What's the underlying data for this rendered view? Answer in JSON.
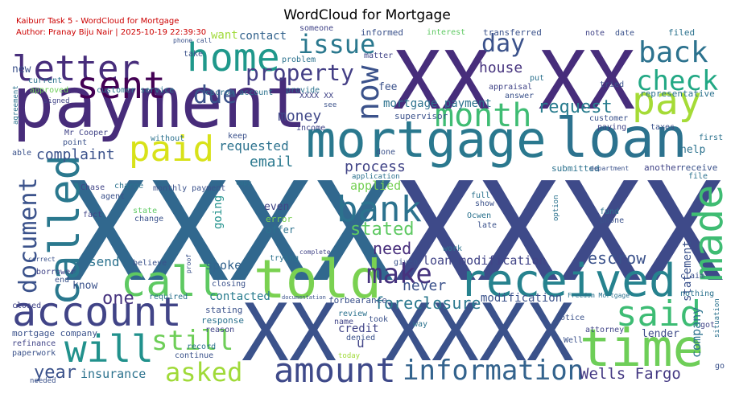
{
  "chart_data": {
    "type": "wordcloud",
    "title": "WordCloud for Mortgage",
    "annotations": [
      "Kaiburr Task 5 - WordCloud for Mortgage",
      "Author: Pranay Biju Nair | 2025-10-19 22:39:30"
    ],
    "words": [
      "XXXX",
      "XXXX",
      "XX XX",
      "XX XXXX",
      "payment",
      "mortgage",
      "loan",
      "told",
      "received",
      "time",
      "amount",
      "information",
      "account",
      "call",
      "called",
      "document",
      "will",
      "still",
      "asked",
      "letter",
      "sent",
      "home",
      "issue",
      "day",
      "now",
      "back",
      "check",
      "pay",
      "month",
      "due",
      "property",
      "paid",
      "bank",
      "made",
      "said",
      "make",
      "request",
      "complaint",
      "requested",
      "email",
      "process",
      "house",
      "money",
      "mortgage payment",
      "Wells Fargo",
      "insurance",
      "year",
      "foreclosure",
      "escrow",
      "loan modification",
      "need",
      "stated",
      "applied",
      "never",
      "one",
      "send",
      "spoke",
      "contacted",
      "modification",
      "credit",
      "help",
      "lender",
      "company",
      "statement",
      "going",
      "know",
      "contact",
      "want",
      "fee",
      "even",
      "error",
      "offer",
      "u",
      "informed",
      "interest",
      "transferred",
      "note",
      "date",
      "filed",
      "someone",
      "new",
      "current",
      "approved",
      "customer service",
      "escrow account",
      "XXXX XX",
      "see",
      "provide",
      "supervisor",
      "appraisal",
      "put",
      "answer",
      "tried",
      "representative",
      "customer",
      "paying",
      "taxes",
      "first",
      "receive",
      "file",
      "another",
      "submitted",
      "department",
      "application",
      "Mr Cooper",
      "point",
      "charge",
      "monthly payment",
      "Chase",
      "agent",
      "fact",
      "state",
      "change",
      "full",
      "show",
      "Ocwen",
      "late",
      "fund",
      "phone",
      "option",
      "work",
      "given",
      "trying",
      "believe",
      "borrower",
      "end",
      "required",
      "closing",
      "closed",
      "stating",
      "response",
      "reason",
      "forbearance",
      "review",
      "took",
      "name",
      "denied",
      "way",
      "notice",
      "attorney",
      "Well",
      "nothing",
      "claim",
      "got",
      "go",
      "situation",
      "mortgage company",
      "refinance",
      "paperwork",
      "record",
      "continue",
      "today",
      "needed",
      "agreement",
      "able",
      "signed",
      "take",
      "problem",
      "matter",
      "phone call",
      "without",
      "keep",
      "income",
      "done",
      "Freedom Mortgage",
      "proof",
      "complete",
      "documentation",
      "copy",
      "correct"
    ]
  }
}
